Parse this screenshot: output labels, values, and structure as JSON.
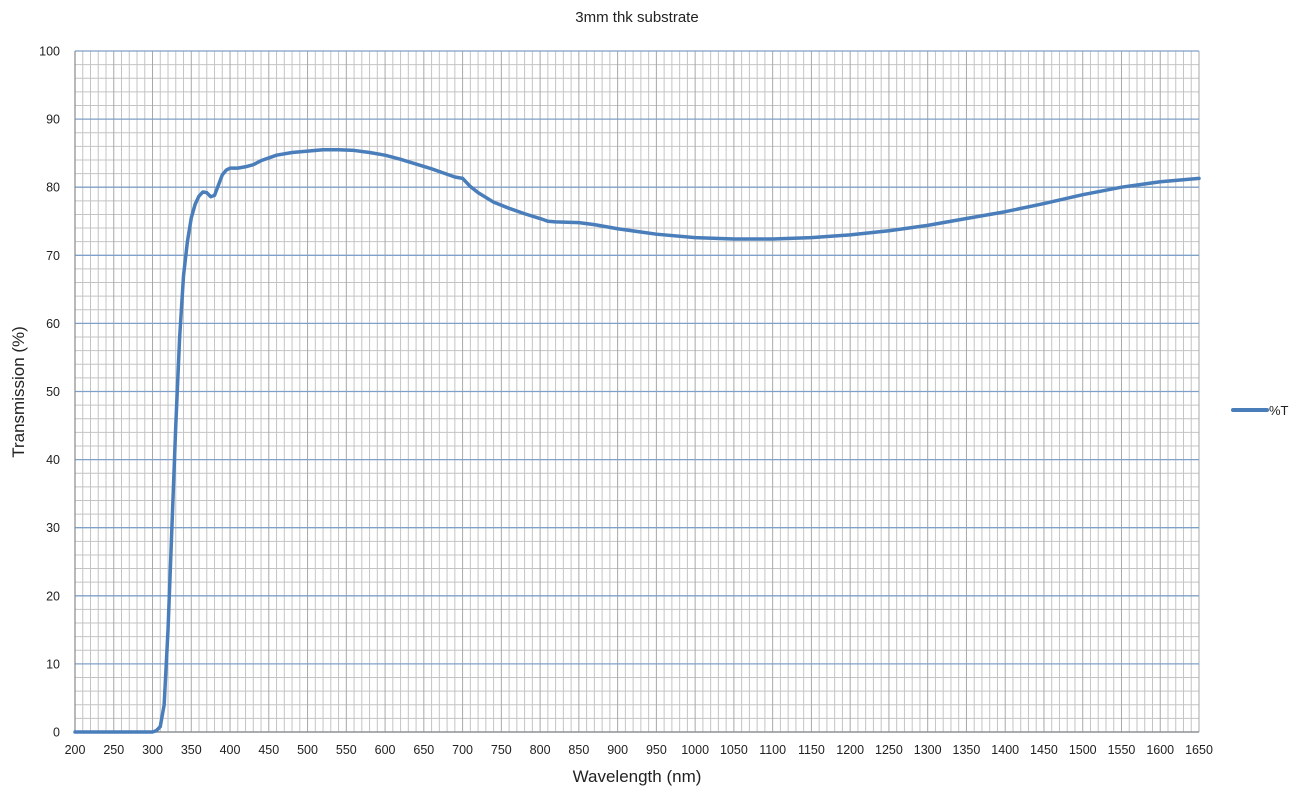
{
  "chart_data": {
    "type": "line",
    "title": "3mm thk substrate",
    "xlabel": "Wavelength (nm)",
    "ylabel": "Transmission (%)",
    "xlim": [
      200,
      1650
    ],
    "ylim": [
      0,
      100
    ],
    "x_major_ticks": [
      200,
      250,
      300,
      350,
      400,
      450,
      500,
      550,
      600,
      650,
      700,
      750,
      800,
      850,
      900,
      950,
      1000,
      1050,
      1100,
      1150,
      1200,
      1250,
      1300,
      1350,
      1400,
      1450,
      1500,
      1550,
      1600,
      1650
    ],
    "x_minor_step": 10,
    "y_major_ticks": [
      0,
      10,
      20,
      30,
      40,
      50,
      60,
      70,
      80,
      90,
      100
    ],
    "y_minor_step": 2,
    "grid": true,
    "legend_position": "right",
    "colors": {
      "series": "#4a7ebb",
      "major_grid": "#7fa0c8",
      "minor_grid": "#c4c4c4"
    },
    "series": [
      {
        "name": "%T",
        "x": [
          200,
          250,
          300,
          305,
          310,
          315,
          320,
          325,
          330,
          335,
          340,
          345,
          350,
          355,
          360,
          365,
          370,
          375,
          380,
          385,
          390,
          395,
          400,
          410,
          420,
          430,
          440,
          450,
          460,
          480,
          500,
          520,
          540,
          560,
          580,
          600,
          620,
          640,
          660,
          680,
          690,
          700,
          710,
          720,
          740,
          760,
          780,
          800,
          810,
          820,
          850,
          870,
          900,
          950,
          1000,
          1050,
          1100,
          1150,
          1200,
          1250,
          1300,
          1350,
          1400,
          1450,
          1500,
          1550,
          1600,
          1650
        ],
        "y": [
          0,
          0,
          0,
          0.2,
          0.8,
          4,
          15,
          30,
          45,
          58,
          67,
          72,
          75.5,
          77.5,
          78.7,
          79.3,
          79.2,
          78.6,
          78.8,
          80.3,
          81.8,
          82.5,
          82.8,
          82.8,
          83.0,
          83.3,
          83.9,
          84.3,
          84.7,
          85.1,
          85.3,
          85.5,
          85.5,
          85.4,
          85.1,
          84.7,
          84.1,
          83.4,
          82.7,
          81.9,
          81.5,
          81.3,
          80.1,
          79.2,
          77.8,
          76.9,
          76.1,
          75.4,
          75.0,
          74.9,
          74.8,
          74.5,
          73.9,
          73.1,
          72.6,
          72.4,
          72.4,
          72.6,
          73.0,
          73.6,
          74.4,
          75.4,
          76.4,
          77.6,
          78.9,
          80.0,
          80.8,
          81.3
        ]
      }
    ]
  }
}
